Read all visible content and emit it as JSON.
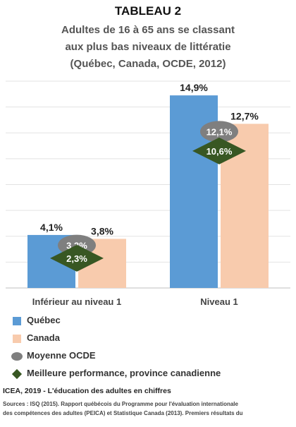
{
  "header": {
    "title": "TABLEAU 2",
    "subtitle_lines": [
      "Adultes de 16 à 65 ans se classant",
      "aux plus bas niveaux de littératie",
      "(Québec, Canada, OCDE, 2012)"
    ]
  },
  "chart_data": {
    "type": "bar",
    "categories": [
      "Inférieur au niveau 1",
      "Niveau 1"
    ],
    "series": [
      {
        "name": "Québec",
        "values": [
          4.1,
          14.9
        ],
        "labels": [
          "4,1%",
          "14,9%"
        ],
        "color": "#5b9bd5"
      },
      {
        "name": "Canada",
        "values": [
          3.8,
          12.7
        ],
        "labels": [
          "3,8%",
          "12,7%"
        ],
        "color": "#f8cbad"
      }
    ],
    "markers": [
      {
        "name": "Moyenne OCDE",
        "shape": "ellipse",
        "values": [
          3.3,
          12.1
        ],
        "labels": [
          "3,3%",
          "12,1%"
        ],
        "color": "#7f7f7f"
      },
      {
        "name": "Meilleure performance, province canadienne",
        "shape": "diamond",
        "values": [
          2.3,
          10.6
        ],
        "labels": [
          "2,3%",
          "10,6%"
        ],
        "color": "#385723"
      }
    ],
    "ylim": [
      0,
      16
    ],
    "grid": true,
    "legend_position": "bottom-left"
  },
  "legend": {
    "items": [
      {
        "label": "Québec",
        "shape": "square",
        "color": "#5b9bd5"
      },
      {
        "label": "Canada",
        "shape": "square",
        "color": "#f8cbad"
      },
      {
        "label": "Moyenne OCDE",
        "shape": "circle",
        "color": "#7f7f7f"
      },
      {
        "label": "Meilleure performance, province canadienne",
        "shape": "diamond",
        "color": "#385723"
      }
    ]
  },
  "footer": {
    "title": "ICEA, 2019 - L'éducation des adultes en chiffres",
    "source_lines": [
      "Sources : ISQ (2015). Rapport québécois du Programme pour l'évaluation internationale",
      "des compétences des adultes (PEICA) et Statistique Canada (2013). Premiers résultats du"
    ]
  }
}
